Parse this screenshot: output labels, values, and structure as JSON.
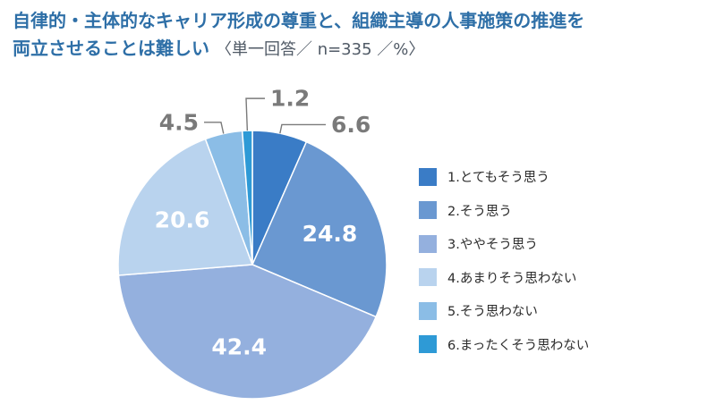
{
  "title": {
    "line1": "自律的・主体的なキャリア形成の尊重と、組織主導の人事施策の推進を",
    "line2": "両立させることは難しい",
    "note": "〈単一回答／ n=335 ／%〉"
  },
  "colors": {
    "slices": [
      "#3a7cc6",
      "#6a98d1",
      "#94b0de",
      "#b9d3ee",
      "#8bbde6",
      "#2e9ad6"
    ],
    "value_label_inside": "#ffffff",
    "value_label_outside": "#7a7a7a",
    "leader_line": "#7a7a7a",
    "slice_border": "#ffffff"
  },
  "chart_data": {
    "type": "pie",
    "unit": "%",
    "categories": [
      "1.とてもそう思う",
      "2.そう思う",
      "3.ややそう思う",
      "4.あまりそう思わない",
      "5.そう思わない",
      "6.まったくそう思わない"
    ],
    "values": [
      6.6,
      24.8,
      42.4,
      20.6,
      4.5,
      1.2
    ],
    "value_labels": [
      "6.6",
      "24.8",
      "42.4",
      "20.6",
      "4.5",
      "1.2"
    ],
    "start_angle": "12 o'clock",
    "direction": "clockwise",
    "legend_position": "right",
    "labels_outside_for": [
      "6.6",
      "4.5",
      "1.2"
    ]
  }
}
